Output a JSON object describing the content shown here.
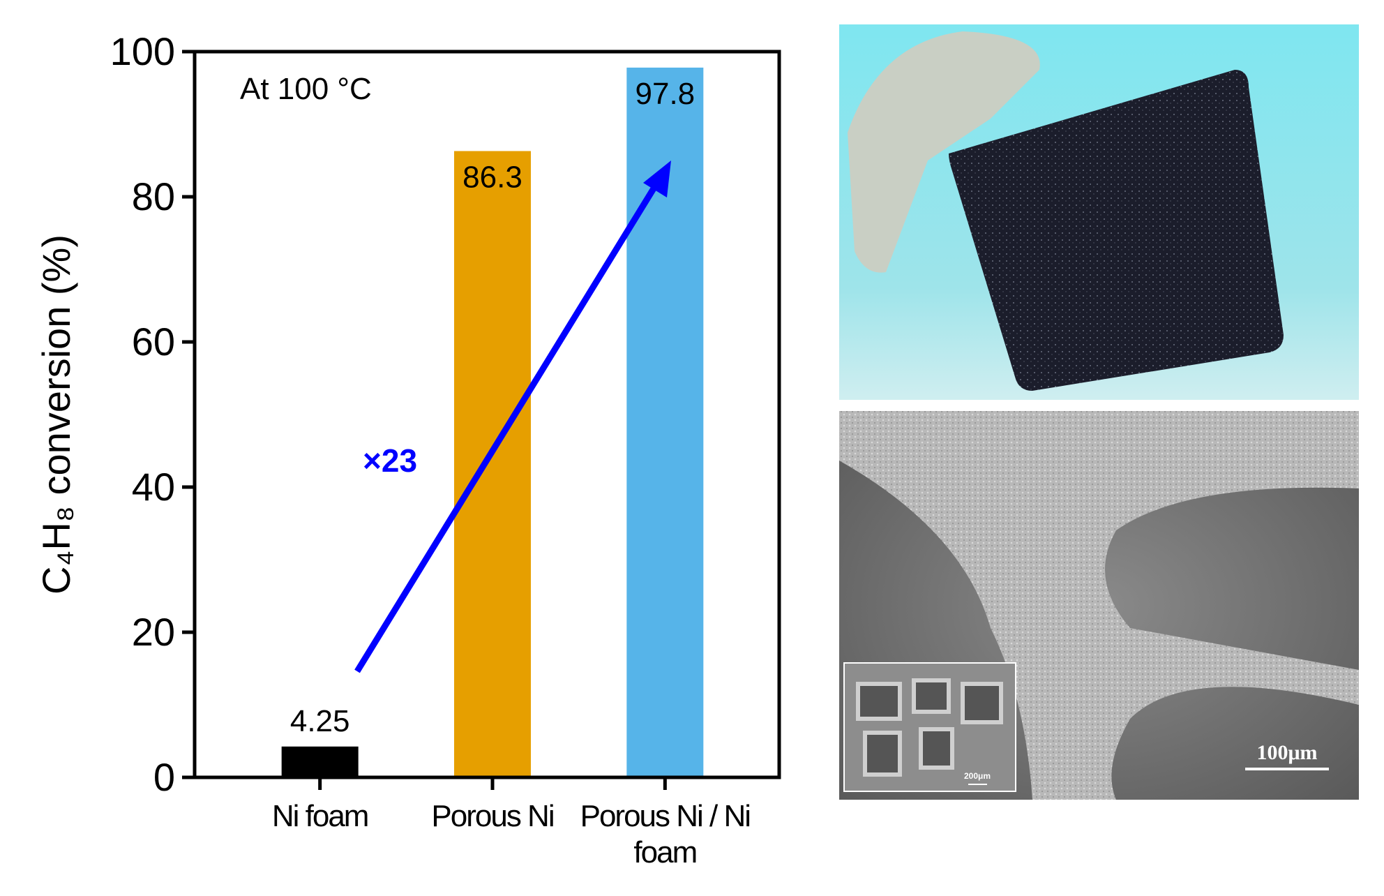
{
  "chart_data": {
    "type": "bar",
    "ylabel": "C₄H₈ conversion (%)",
    "annotation": "At 100 °C",
    "arrow_label": "×23",
    "categories": [
      "Ni foam",
      "Porous Ni",
      "Porous Ni / Ni foam"
    ],
    "values": [
      4.25,
      86.3,
      97.8
    ],
    "colors": [
      "#000000",
      "#e69f00",
      "#56b4e9"
    ],
    "ylim": [
      0,
      100
    ],
    "yticks": [
      0,
      20,
      40,
      60,
      80,
      100
    ],
    "grid": false
  },
  "images": {
    "sem_scale_label": "100μm",
    "inset_scale_label": "200μm"
  }
}
